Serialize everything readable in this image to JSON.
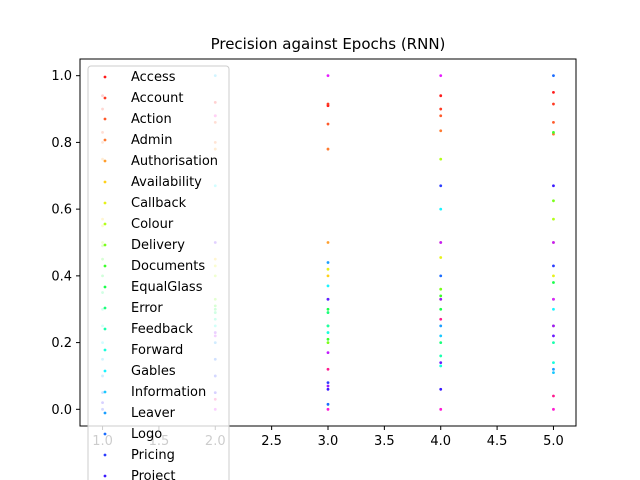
{
  "chart_data": {
    "type": "scatter",
    "title": "Precision against Epochs (RNN)",
    "xlabel": "",
    "ylabel": "",
    "xlim": [
      0.8,
      5.2
    ],
    "ylim": [
      -0.05,
      1.05
    ],
    "xticks": [
      "1.0",
      "1.5",
      "2.0",
      "2.5",
      "3.0",
      "3.5",
      "4.0",
      "4.5",
      "5.0"
    ],
    "yticks": [
      "0.0",
      "0.2",
      "0.4",
      "0.6",
      "0.8",
      "1.0"
    ],
    "legend_position": "upper-left",
    "grid": false,
    "series": [
      {
        "name": "Access",
        "color": "#ff1a1a",
        "points": [
          [
            1,
            0.94
          ],
          [
            2,
            0.92
          ],
          [
            3,
            0.91
          ],
          [
            4,
            0.94
          ],
          [
            5,
            0.95
          ]
        ]
      },
      {
        "name": "Account",
        "color": "#ff3a22",
        "points": [
          [
            1,
            0.9
          ],
          [
            2,
            0.88
          ],
          [
            3,
            0.915
          ],
          [
            4,
            0.9
          ],
          [
            5,
            0.915
          ]
        ]
      },
      {
        "name": "Action",
        "color": "#ff5a2a",
        "points": [
          [
            1,
            0.83
          ],
          [
            2,
            0.86
          ],
          [
            3,
            0.855
          ],
          [
            4,
            0.88
          ],
          [
            5,
            0.86
          ]
        ]
      },
      {
        "name": "Admin",
        "color": "#ff7a30",
        "points": [
          [
            1,
            0.8
          ],
          [
            2,
            0.8
          ],
          [
            3,
            0.78
          ],
          [
            4,
            0.835
          ],
          [
            5,
            0.825
          ]
        ]
      },
      {
        "name": "Authorisation",
        "color": "#ff9e2c",
        "points": [
          [
            1,
            0.75
          ],
          [
            2,
            0.78
          ],
          [
            3,
            0.5
          ],
          [
            4,
            0.5
          ],
          [
            5,
            0.5
          ]
        ]
      },
      {
        "name": "Availability",
        "color": "#ffd11a",
        "points": [
          [
            1,
            0.57
          ],
          [
            2,
            0.45
          ],
          [
            3,
            0.4
          ],
          [
            4,
            0.33
          ],
          [
            5,
            0.25
          ]
        ]
      },
      {
        "name": "Callback",
        "color": "#e6f21a",
        "points": [
          [
            1,
            0.55
          ],
          [
            2,
            0.43
          ],
          [
            3,
            0.42
          ],
          [
            4,
            0.455
          ],
          [
            5,
            0.4
          ]
        ]
      },
      {
        "name": "Colour",
        "color": "#b3ff1a",
        "points": [
          [
            1,
            0.5
          ],
          [
            2,
            0.4
          ],
          [
            3,
            0.25
          ],
          [
            4,
            0.75
          ],
          [
            5,
            0.57
          ]
        ]
      },
      {
        "name": "Delivery",
        "color": "#7aff1a",
        "points": [
          [
            1,
            0.49
          ],
          [
            2,
            0.33
          ],
          [
            3,
            0.2
          ],
          [
            4,
            0.36
          ],
          [
            5,
            0.625
          ]
        ]
      },
      {
        "name": "Documents",
        "color": "#3cff2a",
        "points": [
          [
            1,
            0.45
          ],
          [
            2,
            0.31
          ],
          [
            3,
            0.21
          ],
          [
            4,
            0.34
          ],
          [
            5,
            0.83
          ]
        ]
      },
      {
        "name": "EqualGlass",
        "color": "#1aff4a",
        "points": [
          [
            1,
            0.4
          ],
          [
            2,
            0.3
          ],
          [
            3,
            0.3
          ],
          [
            4,
            0.3
          ],
          [
            5,
            0.38
          ]
        ]
      },
      {
        "name": "Error",
        "color": "#1aff7a",
        "points": [
          [
            1,
            0.35
          ],
          [
            2,
            0.29
          ],
          [
            3,
            0.29
          ],
          [
            4,
            0.2
          ],
          [
            5,
            0.33
          ]
        ]
      },
      {
        "name": "Feedback",
        "color": "#1affae",
        "points": [
          [
            1,
            0.3
          ],
          [
            2,
            0.27
          ],
          [
            3,
            0.25
          ],
          [
            4,
            0.16
          ],
          [
            5,
            0.2
          ]
        ]
      },
      {
        "name": "Forward",
        "color": "#1affdc",
        "points": [
          [
            1,
            0.25
          ],
          [
            2,
            0.25
          ],
          [
            3,
            0.23
          ],
          [
            4,
            0.13
          ],
          [
            5,
            0.14
          ]
        ]
      },
      {
        "name": "Gables",
        "color": "#1af4ff",
        "points": [
          [
            1,
            0.2
          ],
          [
            2,
            0.67
          ],
          [
            3,
            0.37
          ],
          [
            4,
            0.6
          ],
          [
            5,
            0.3
          ]
        ]
      },
      {
        "name": "Information",
        "color": "#1ac8ff",
        "points": [
          [
            1,
            0.15
          ],
          [
            2,
            1.0
          ],
          [
            3,
            0.33
          ],
          [
            4,
            0.22
          ],
          [
            5,
            0.11
          ]
        ]
      },
      {
        "name": "Leaver",
        "color": "#1a9eff",
        "points": [
          [
            1,
            0.1
          ],
          [
            2,
            0.2
          ],
          [
            3,
            0.44
          ],
          [
            4,
            0.25
          ],
          [
            5,
            0.12
          ]
        ]
      },
      {
        "name": "Logo",
        "color": "#1a6cff",
        "points": [
          [
            1,
            0.05
          ],
          [
            2,
            0.15
          ],
          [
            3,
            0.015
          ],
          [
            4,
            0.4
          ],
          [
            5,
            1.0
          ]
        ]
      },
      {
        "name": "Pricing",
        "color": "#2a3cff",
        "points": [
          [
            1,
            0.0
          ],
          [
            2,
            0.1
          ],
          [
            3,
            0.08
          ],
          [
            4,
            0.67
          ],
          [
            5,
            0.43
          ]
        ]
      },
      {
        "name": "Project",
        "color": "#3a1aff",
        "points": [
          [
            1,
            0.02
          ],
          [
            2,
            0.05
          ],
          [
            3,
            0.06
          ],
          [
            4,
            0.06
          ],
          [
            5,
            0.67
          ]
        ]
      },
      {
        "name": "",
        "color": "#6a1aff",
        "points": [
          [
            2,
            0.5
          ],
          [
            3,
            0.33
          ],
          [
            4,
            0.14
          ],
          [
            5,
            0.22
          ]
        ]
      },
      {
        "name": "",
        "color": "#9a1aff",
        "points": [
          [
            2,
            0.23
          ],
          [
            3,
            0.07
          ],
          [
            4,
            0.33
          ],
          [
            5,
            0.25
          ]
        ]
      },
      {
        "name": "",
        "color": "#c21aff",
        "points": [
          [
            2,
            0.22
          ],
          [
            3,
            0.17
          ],
          [
            4,
            0.5
          ],
          [
            5,
            0.5
          ]
        ]
      },
      {
        "name": "",
        "color": "#e61aff",
        "points": [
          [
            2,
            0.0
          ],
          [
            3,
            1.0
          ],
          [
            4,
            1.0
          ],
          [
            5,
            0.33
          ]
        ]
      },
      {
        "name": "",
        "color": "#ff1ad4",
        "points": [
          [
            2,
            0.88
          ],
          [
            3,
            0.0
          ],
          [
            4,
            0.0
          ],
          [
            5,
            0.0
          ]
        ]
      },
      {
        "name": "",
        "color": "#ff1a8e",
        "points": [
          [
            2,
            0.03
          ],
          [
            3,
            0.12
          ],
          [
            4,
            0.27
          ],
          [
            5,
            0.04
          ]
        ]
      }
    ]
  }
}
